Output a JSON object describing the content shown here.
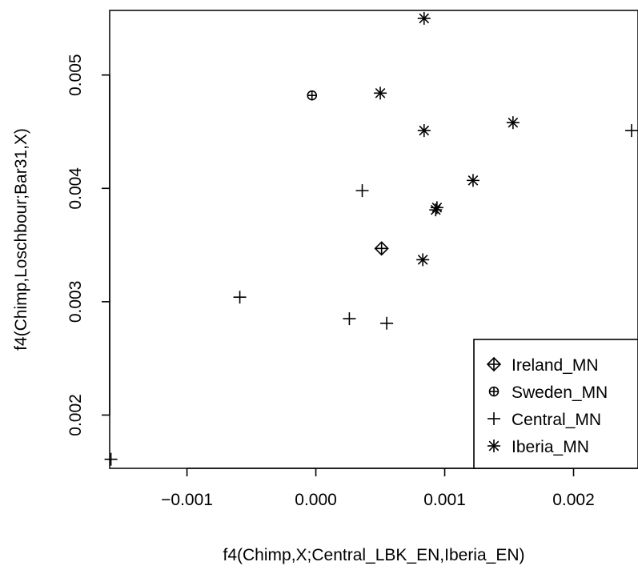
{
  "chart_data": {
    "type": "scatter",
    "xlabel": "f4(Chimp,X;Central_LBK_EN,Iberia_EN)",
    "ylabel": "f4(Chimp,Loschbour;Bar31,X)",
    "xlim": [
      -0.0016,
      0.0025
    ],
    "ylim": [
      0.00153,
      0.00557
    ],
    "x_ticks": [
      {
        "value": -0.001,
        "label": "−0.001"
      },
      {
        "value": 0.0,
        "label": "0.000"
      },
      {
        "value": 0.001,
        "label": "0.001"
      },
      {
        "value": 0.002,
        "label": "0.002"
      }
    ],
    "y_ticks": [
      {
        "value": 0.002,
        "label": "0.002"
      },
      {
        "value": 0.003,
        "label": "0.003"
      },
      {
        "value": 0.004,
        "label": "0.004"
      },
      {
        "value": 0.005,
        "label": "0.005"
      }
    ],
    "grid": false,
    "legend_position": "bottom-right",
    "series": [
      {
        "name": "Ireland_MN",
        "marker": "diamond-plus",
        "points": [
          {
            "x": 0.00051,
            "y": 0.00347
          }
        ]
      },
      {
        "name": "Sweden_MN",
        "marker": "circle-plus",
        "points": [
          {
            "x": -3e-05,
            "y": 0.00482
          }
        ]
      },
      {
        "name": "Central_MN",
        "marker": "plus",
        "points": [
          {
            "x": -0.00159,
            "y": 0.00161
          },
          {
            "x": -0.00059,
            "y": 0.00304
          },
          {
            "x": 0.00026,
            "y": 0.00285
          },
          {
            "x": 0.00036,
            "y": 0.00398
          },
          {
            "x": 0.00055,
            "y": 0.00281
          },
          {
            "x": 0.00245,
            "y": 0.00451
          }
        ]
      },
      {
        "name": "Iberia_MN",
        "marker": "asterisk",
        "points": [
          {
            "x": 0.00084,
            "y": 0.0055
          },
          {
            "x": 0.0005,
            "y": 0.00484
          },
          {
            "x": 0.00084,
            "y": 0.00451
          },
          {
            "x": 0.00153,
            "y": 0.00458
          },
          {
            "x": 0.00122,
            "y": 0.00407
          },
          {
            "x": 0.00094,
            "y": 0.00383
          },
          {
            "x": 0.00093,
            "y": 0.00381
          },
          {
            "x": 0.00083,
            "y": 0.00337
          }
        ]
      }
    ]
  }
}
